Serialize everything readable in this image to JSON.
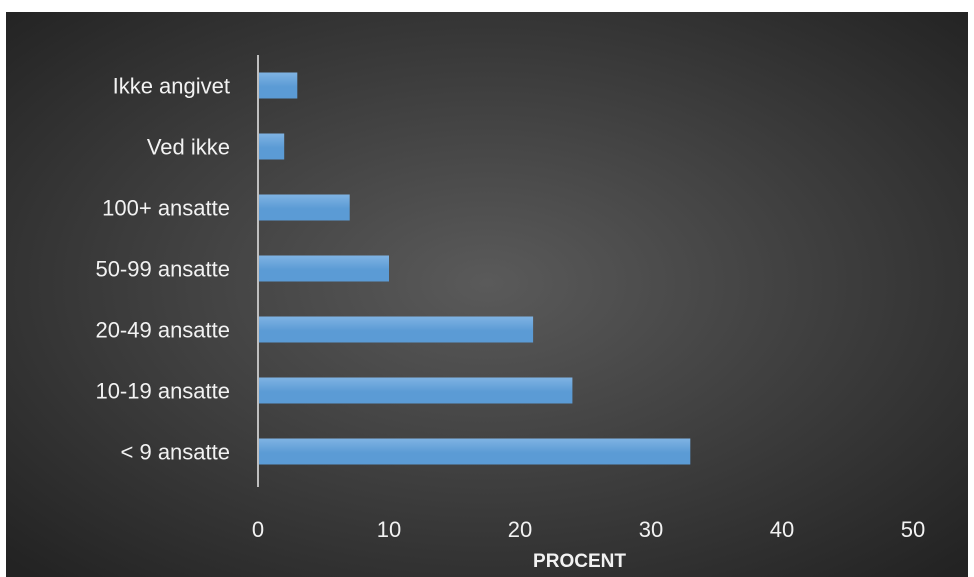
{
  "chart_data": {
    "type": "bar",
    "orientation": "horizontal",
    "categories": [
      "< 9 ansatte",
      "10-19 ansatte",
      "20-49 ansatte",
      "50-99 ansatte",
      "100+ ansatte",
      "Ved ikke",
      "Ikke angivet"
    ],
    "values": [
      33,
      24,
      21,
      10,
      7,
      2,
      3
    ],
    "title": "",
    "xlabel": "PROCENT",
    "ylabel": "",
    "xlim": [
      0,
      50
    ],
    "x_ticks": [
      0,
      10,
      20,
      30,
      40,
      50
    ],
    "x_tick_labels": [
      "0",
      "10",
      "20",
      "30",
      "40",
      "50"
    ],
    "grid": false,
    "legend": "none",
    "colors": {
      "bar_fill": "#5b9bd5",
      "bar_highlight": "#7fb3e3",
      "background_center": "#5a5a5a",
      "background_edge": "#232323",
      "axis_line": "#bfbfbf",
      "text": "#f2f2f2"
    }
  }
}
